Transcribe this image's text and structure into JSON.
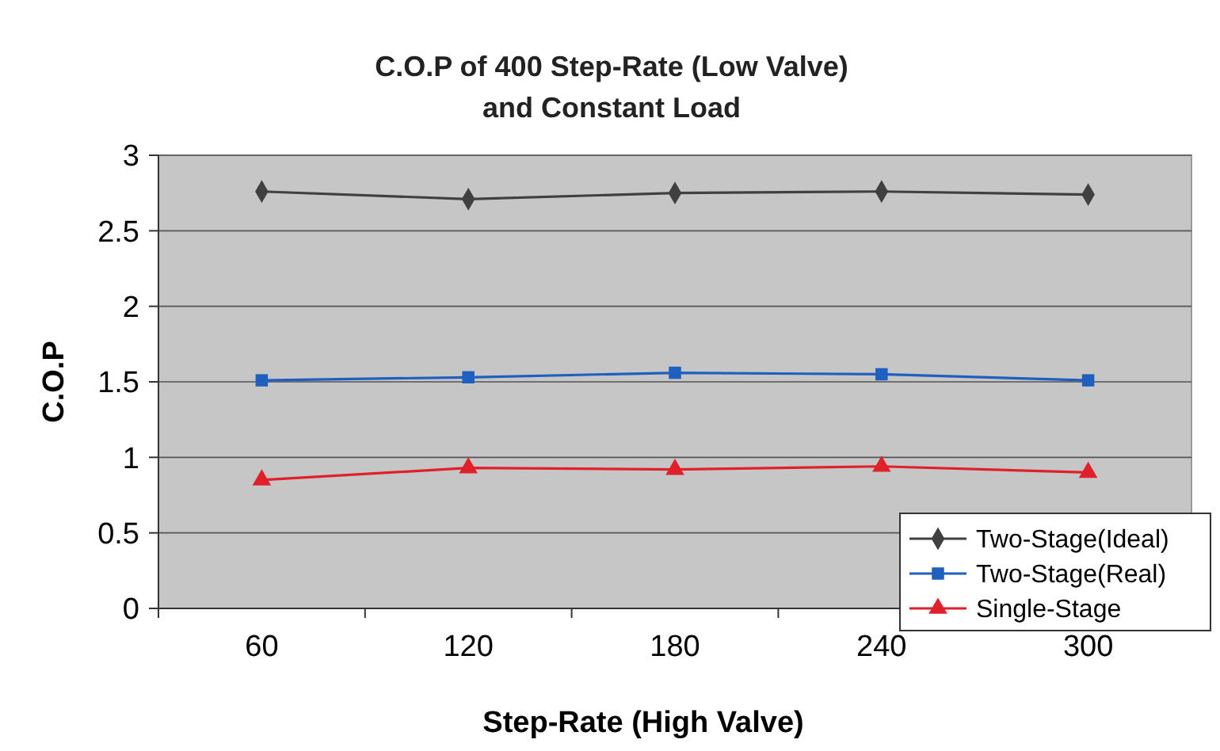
{
  "chart_data": {
    "type": "line",
    "title": "C.O.P of 400 Step-Rate (Low Valve)\nand Constant Load",
    "xlabel": "Step-Rate (High Valve)",
    "ylabel": "C.O.P",
    "categories": [
      "60",
      "120",
      "180",
      "240",
      "300"
    ],
    "series": [
      {
        "name": "Two-Stage(Ideal)",
        "color": "#404040",
        "marker": "diamond",
        "values": [
          2.76,
          2.71,
          2.75,
          2.76,
          2.74
        ]
      },
      {
        "name": "Two-Stage(Real)",
        "color": "#1f5fbf",
        "marker": "square",
        "values": [
          1.51,
          1.53,
          1.56,
          1.55,
          1.51
        ]
      },
      {
        "name": "Single-Stage",
        "color": "#e0202a",
        "marker": "triangle",
        "values": [
          0.85,
          0.93,
          0.92,
          0.94,
          0.9
        ]
      }
    ],
    "ylim": [
      0,
      3
    ],
    "yticks": [
      0,
      0.5,
      1,
      1.5,
      2,
      2.5,
      3
    ],
    "grid": "y",
    "legend": "bottom right"
  }
}
